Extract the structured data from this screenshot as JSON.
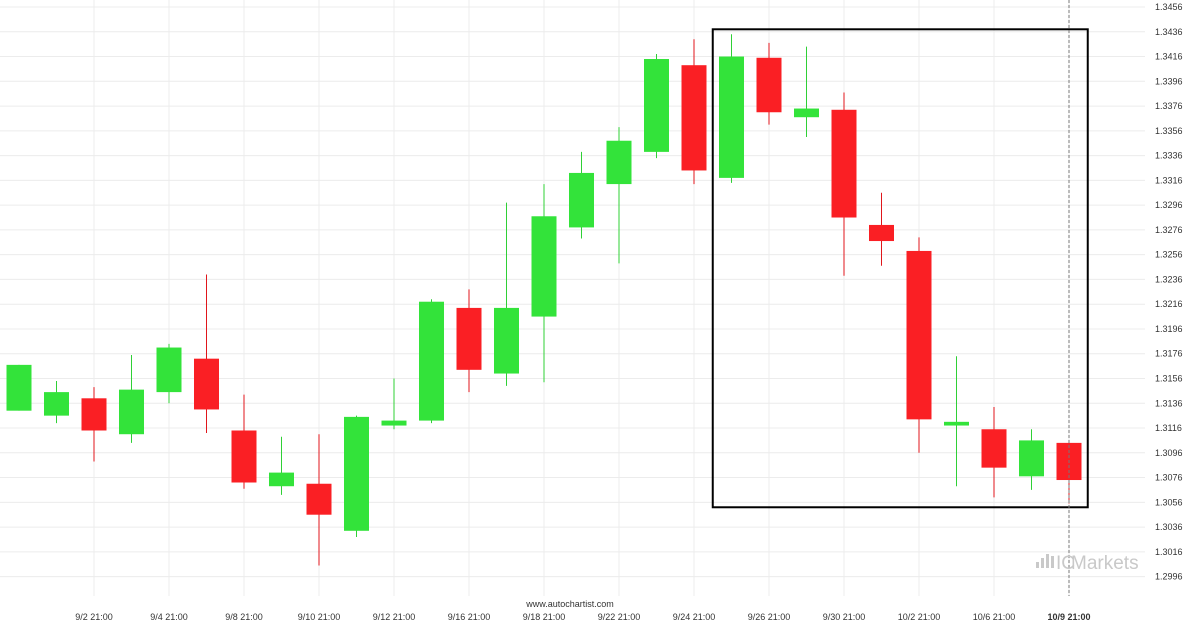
{
  "source_label": "www.autochartist.com",
  "watermark": {
    "ic": "IC",
    "markets": "Markets"
  },
  "colors": {
    "up": "#33e33a",
    "down": "#fa1f24",
    "wick_up": "#2fd036",
    "wick_down": "#e0161b",
    "grid": "#ececec",
    "box": "#000000",
    "axis_text": "#333333",
    "watermark": "#c9c9c9"
  },
  "chart_data": {
    "type": "candlestick",
    "ylim": [
      1.2986,
      1.3456
    ],
    "yticks": [
      "1.3456",
      "1.3436",
      "1.3416",
      "1.3396",
      "1.3376",
      "1.3356",
      "1.3336",
      "1.3316",
      "1.3296",
      "1.3276",
      "1.3256",
      "1.3236",
      "1.3216",
      "1.3196",
      "1.3176",
      "1.3156",
      "1.3136",
      "1.3116",
      "1.3096",
      "1.3076",
      "1.3056",
      "1.3036",
      "1.3016",
      "1.2996"
    ],
    "xticks": [
      {
        "label": "9/2 21:00",
        "index": 2
      },
      {
        "label": "9/4 21:00",
        "index": 4
      },
      {
        "label": "9/8 21:00",
        "index": 6
      },
      {
        "label": "9/10 21:00",
        "index": 8
      },
      {
        "label": "9/12 21:00",
        "index": 10
      },
      {
        "label": "9/16 21:00",
        "index": 12
      },
      {
        "label": "9/18 21:00",
        "index": 14
      },
      {
        "label": "9/22 21:00",
        "index": 16
      },
      {
        "label": "9/24 21:00",
        "index": 18
      },
      {
        "label": "9/26 21:00",
        "index": 20
      },
      {
        "label": "9/30 21:00",
        "index": 22
      },
      {
        "label": "10/2 21:00",
        "index": 24
      },
      {
        "label": "10/6 21:00",
        "index": 26
      },
      {
        "label": "10/9 21:00",
        "index": 28,
        "bold": true
      }
    ],
    "candles": [
      {
        "o": 1.313,
        "h": 1.3167,
        "l": 1.313,
        "c": 1.3167
      },
      {
        "o": 1.3126,
        "h": 1.3154,
        "l": 1.312,
        "c": 1.3145
      },
      {
        "o": 1.314,
        "h": 1.3149,
        "l": 1.3089,
        "c": 1.3114
      },
      {
        "o": 1.3111,
        "h": 1.3175,
        "l": 1.3104,
        "c": 1.3147
      },
      {
        "o": 1.3145,
        "h": 1.3184,
        "l": 1.3136,
        "c": 1.3181
      },
      {
        "o": 1.3172,
        "h": 1.324,
        "l": 1.3112,
        "c": 1.3131
      },
      {
        "o": 1.3114,
        "h": 1.3143,
        "l": 1.3067,
        "c": 1.3072
      },
      {
        "o": 1.3069,
        "h": 1.3109,
        "l": 1.3062,
        "c": 1.308
      },
      {
        "o": 1.3071,
        "h": 1.3111,
        "l": 1.3005,
        "c": 1.3046
      },
      {
        "o": 1.3033,
        "h": 1.3126,
        "l": 1.3028,
        "c": 1.3125
      },
      {
        "o": 1.3118,
        "h": 1.3156,
        "l": 1.3115,
        "c": 1.3122
      },
      {
        "o": 1.3122,
        "h": 1.322,
        "l": 1.312,
        "c": 1.3218
      },
      {
        "o": 1.3213,
        "h": 1.3228,
        "l": 1.3145,
        "c": 1.3163
      },
      {
        "o": 1.316,
        "h": 1.3298,
        "l": 1.315,
        "c": 1.3213
      },
      {
        "o": 1.3206,
        "h": 1.3313,
        "l": 1.3153,
        "c": 1.3287
      },
      {
        "o": 1.3278,
        "h": 1.3339,
        "l": 1.3269,
        "c": 1.3322
      },
      {
        "o": 1.3313,
        "h": 1.3359,
        "l": 1.3249,
        "c": 1.3348
      },
      {
        "o": 1.3339,
        "h": 1.3418,
        "l": 1.3334,
        "c": 1.3414
      },
      {
        "o": 1.3409,
        "h": 1.343,
        "l": 1.3313,
        "c": 1.3324
      },
      {
        "o": 1.3318,
        "h": 1.3434,
        "l": 1.3314,
        "c": 1.3416
      },
      {
        "o": 1.3415,
        "h": 1.3427,
        "l": 1.3361,
        "c": 1.3371
      },
      {
        "o": 1.3367,
        "h": 1.3424,
        "l": 1.3351,
        "c": 1.3374
      },
      {
        "o": 1.3373,
        "h": 1.3387,
        "l": 1.3239,
        "c": 1.3286
      },
      {
        "o": 1.328,
        "h": 1.3306,
        "l": 1.3247,
        "c": 1.3267
      },
      {
        "o": 1.3259,
        "h": 1.327,
        "l": 1.3096,
        "c": 1.3123
      },
      {
        "o": 1.3118,
        "h": 1.3174,
        "l": 1.3069,
        "c": 1.3121
      },
      {
        "o": 1.3115,
        "h": 1.3133,
        "l": 1.306,
        "c": 1.3084
      },
      {
        "o": 1.3077,
        "h": 1.3115,
        "l": 1.3066,
        "c": 1.3106
      },
      {
        "o": 1.3104,
        "h": 1.3106,
        "l": 1.3055,
        "c": 1.3074
      }
    ],
    "grid": true,
    "annotations": [
      {
        "type": "rectangle",
        "from_index": 18.5,
        "to_index": 28.5,
        "y_top": 1.3438,
        "y_bottom": 1.3052
      },
      {
        "type": "vertical-dashed-line",
        "index": 28
      }
    ]
  }
}
